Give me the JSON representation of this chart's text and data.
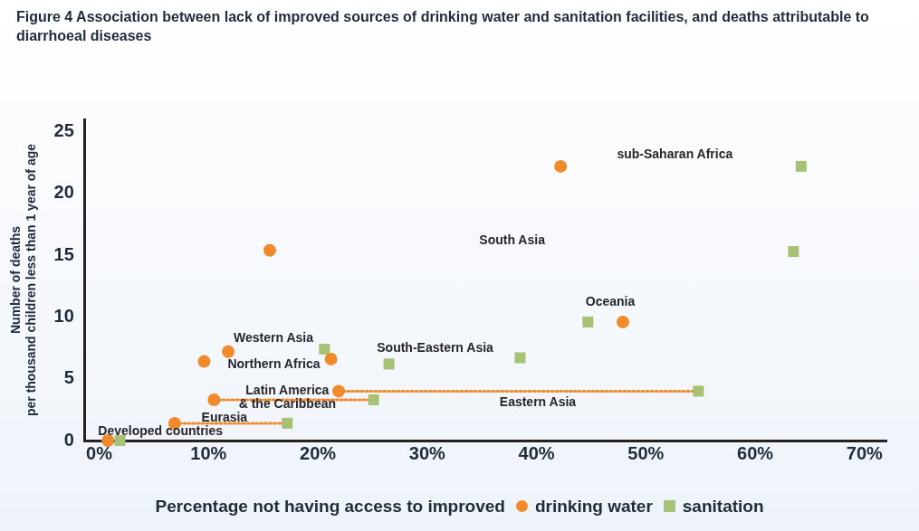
{
  "chart_data": {
    "type": "scatter",
    "title": "Figure 4 Association between lack of improved sources of drinking water and sanitation facilities, and deaths attributable to diarrhoeal diseases",
    "xlabel": "Percentage not having access to improved",
    "ylabel": "Number of deaths\nper thousand children less than 1 year of age",
    "xlim": [
      -1.3,
      72
    ],
    "ylim": [
      0,
      26
    ],
    "xticks": [
      {
        "value": 0,
        "label": "0%"
      },
      {
        "value": 10,
        "label": "10%"
      },
      {
        "value": 20,
        "label": "20%"
      },
      {
        "value": 30,
        "label": "30%"
      },
      {
        "value": 40,
        "label": "40%"
      },
      {
        "value": 50,
        "label": "50%"
      },
      {
        "value": 60,
        "label": "60%"
      },
      {
        "value": 70,
        "label": "70%"
      }
    ],
    "yticks": [
      0,
      5,
      10,
      15,
      20,
      25
    ],
    "grid": false,
    "legend": "bottom",
    "series": [
      {
        "name": "drinking water",
        "color": "#f08a2a",
        "marker": "circle",
        "x": [
          0.8,
          6.9,
          10.5,
          9.6,
          11.8,
          21.2,
          21.9,
          15.6,
          42.2,
          47.9
        ],
        "values": [
          0,
          1.4,
          3.3,
          6.4,
          7.2,
          6.6,
          4.0,
          15.4,
          22.2,
          9.6
        ]
      },
      {
        "name": "sanitation",
        "color": "#a7c274",
        "marker": "square",
        "x": [
          1.9,
          17.2,
          25.1,
          26.5,
          20.6,
          38.5,
          54.8,
          63.5,
          64.2,
          44.7
        ],
        "values": [
          0,
          1.4,
          3.3,
          6.2,
          7.4,
          6.7,
          4.0,
          15.3,
          22.2,
          9.6
        ]
      },
      {
        "type": "line",
        "color": "#f08a2a",
        "marker": "none",
        "line_style": "dotted",
        "x": [
          6.9,
          17.2
        ],
        "values": [
          1.4,
          1.4
        ]
      },
      {
        "type": "line",
        "color": "#f08a2a",
        "marker": "none",
        "line_style": "dotted",
        "x": [
          10.5,
          25.1
        ],
        "values": [
          3.3,
          3.3
        ]
      },
      {
        "type": "line",
        "color": "#f08a2a",
        "marker": "none",
        "line_style": "dotted",
        "x": [
          21.9,
          54.8
        ],
        "values": [
          4.0,
          4.0
        ]
      }
    ],
    "annotations": [
      "sub-Saharan Africa",
      "South Asia",
      {
        "text": "Oceania",
        "x": 47.9,
        "y": 9.6
      },
      {
        "text": "South-Eastern Asia",
        "x": 26.5,
        "y": 6.2
      },
      "Eastern Asia",
      {
        "text": "Western Asia",
        "x": 11.8,
        "y": 7.2
      },
      {
        "text": "Northern Africa",
        "x": 9.6,
        "y": 6.4
      },
      {
        "text": "Latin America\n& the Caribbean",
        "x": 10.5,
        "y": 3.3
      },
      {
        "text": "Eurasia",
        "x": 6.9,
        "y": 1.4
      },
      {
        "text": "Developed countries",
        "x": 0.8,
        "y": 0
      }
    ]
  }
}
